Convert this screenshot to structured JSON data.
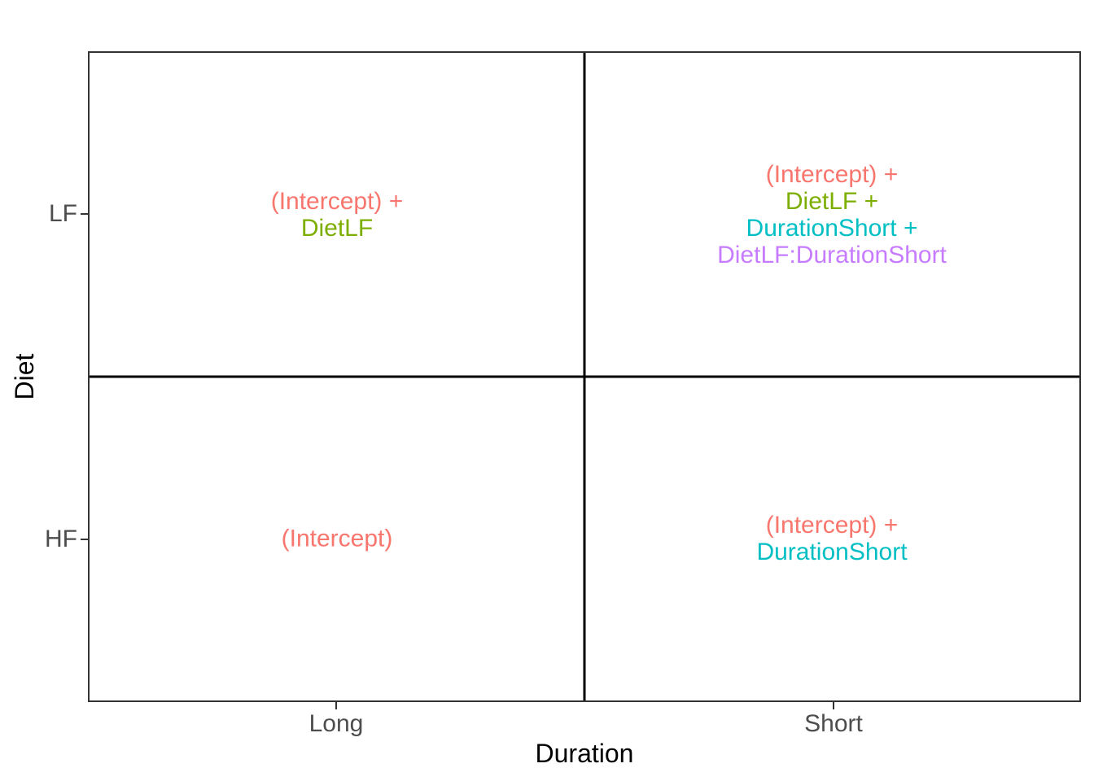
{
  "figure": {
    "background": "#FFFFFF",
    "panel_border_color": "#333333",
    "divider_color": "#000000",
    "axis_text_color": "#4D4D4D",
    "axis_title_color": "#000000"
  },
  "chart_data": {
    "type": "table",
    "title": "",
    "xlabel": "Duration",
    "ylabel": "Diet",
    "x_categories": [
      "Long",
      "Short"
    ],
    "y_categories": [
      "LF",
      "HF"
    ],
    "grid": "2x2 quadrants split by solid black center lines",
    "legend_position": "none",
    "term_colors": {
      "(Intercept)": "#F8766D",
      "DietLF": "#7CAE00",
      "DurationShort": "#00BFC4",
      "DietLF:DurationShort": "#C77CFF"
    },
    "cells": [
      {
        "diet": "LF",
        "duration": "Long",
        "lines": [
          {
            "text": "(Intercept) +",
            "color": "#F8766D"
          },
          {
            "text": "DietLF",
            "color": "#7CAE00"
          }
        ]
      },
      {
        "diet": "LF",
        "duration": "Short",
        "lines": [
          {
            "text": "(Intercept) +",
            "color": "#F8766D"
          },
          {
            "text": "DietLF +",
            "color": "#7CAE00"
          },
          {
            "text": "DurationShort +",
            "color": "#00BFC4"
          },
          {
            "text": "DietLF:DurationShort",
            "color": "#C77CFF"
          }
        ]
      },
      {
        "diet": "HF",
        "duration": "Long",
        "lines": [
          {
            "text": "(Intercept)",
            "color": "#F8766D"
          }
        ]
      },
      {
        "diet": "HF",
        "duration": "Short",
        "lines": [
          {
            "text": "(Intercept) +",
            "color": "#F8766D"
          },
          {
            "text": "DurationShort",
            "color": "#00BFC4"
          }
        ]
      }
    ]
  }
}
